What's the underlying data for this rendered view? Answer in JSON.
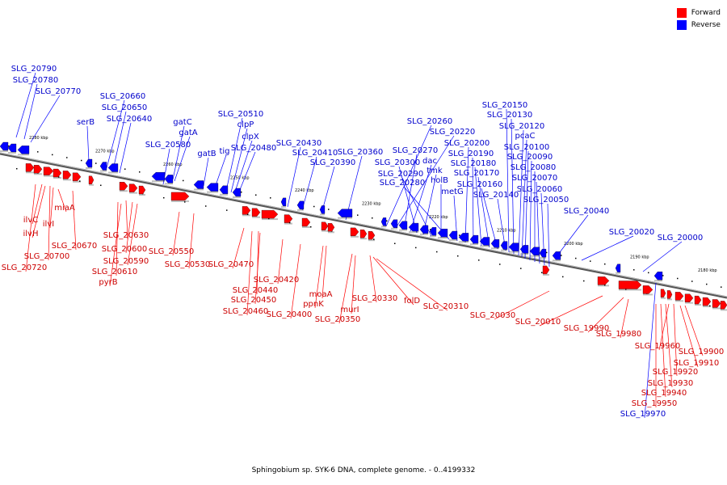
{
  "legend": {
    "forward": {
      "label": "Forward",
      "color": "#ff0000"
    },
    "reverse": {
      "label": "Reverse",
      "color": "#0000ff"
    }
  },
  "caption": "Sphingobium sp. SYK-6 DNA, complete genome. - 0..4199332",
  "scale": {
    "unit": "kbp",
    "ticks": [
      2280,
      2270,
      2260,
      2250,
      2240,
      2230,
      2220,
      2210,
      2200,
      2190,
      2180
    ]
  },
  "reverse_genes": [
    "SLG_20790",
    "SLG_20780",
    "SLG_20770",
    "serB",
    "SLG_20660",
    "SLG_20650",
    "SLG_20640",
    "gatC",
    "gatA",
    "SLG_20580",
    "gatB",
    "tig",
    "SLG_20510",
    "clpP",
    "clpX",
    "SLG_20480",
    "SLG_20430",
    "SLG_20410",
    "SLG_20390",
    "SLG_20360",
    "SLG_20260",
    "SLG_20220",
    "SLG_20270",
    "dac",
    "SLG_20300",
    "tmk",
    "SLG_20290",
    "holB",
    "SLG_20280",
    "metG",
    "SLG_20200",
    "SLG_20190",
    "SLG_20180",
    "SLG_20170",
    "SLG_20160",
    "SLG_20140",
    "SLG_20150",
    "SLG_20130",
    "SLG_20120",
    "pcaC",
    "SLG_20100",
    "SLG_20090",
    "SLG_20080",
    "SLG_20070",
    "SLG_20060",
    "SLG_20050",
    "SLG_20040",
    "SLG_20020",
    "SLG_20000",
    "SLG_19970"
  ],
  "forward_genes": [
    "ilvC",
    "ilvH",
    "ilvI",
    "miaA",
    "SLG_20720",
    "SLG_20700",
    "SLG_20670",
    "SLG_20630",
    "SLG_20600",
    "SLG_20590",
    "SLG_20610",
    "pyrB",
    "SLG_20550",
    "SLG_20530",
    "SLG_20470",
    "SLG_20440",
    "SLG_20450",
    "SLG_20460",
    "SLG_20420",
    "SLG_20400",
    "moaA",
    "ppnK",
    "murI",
    "SLG_20350",
    "SLG_20330",
    "folD",
    "SLG_20310",
    "SLG_20030",
    "SLG_20010",
    "SLG_19990",
    "SLG_19980",
    "SLG_19960",
    "SLG_19910",
    "SLG_19900",
    "SLG_19920",
    "SLG_19930",
    "SLG_19940",
    "SLG_19950"
  ]
}
